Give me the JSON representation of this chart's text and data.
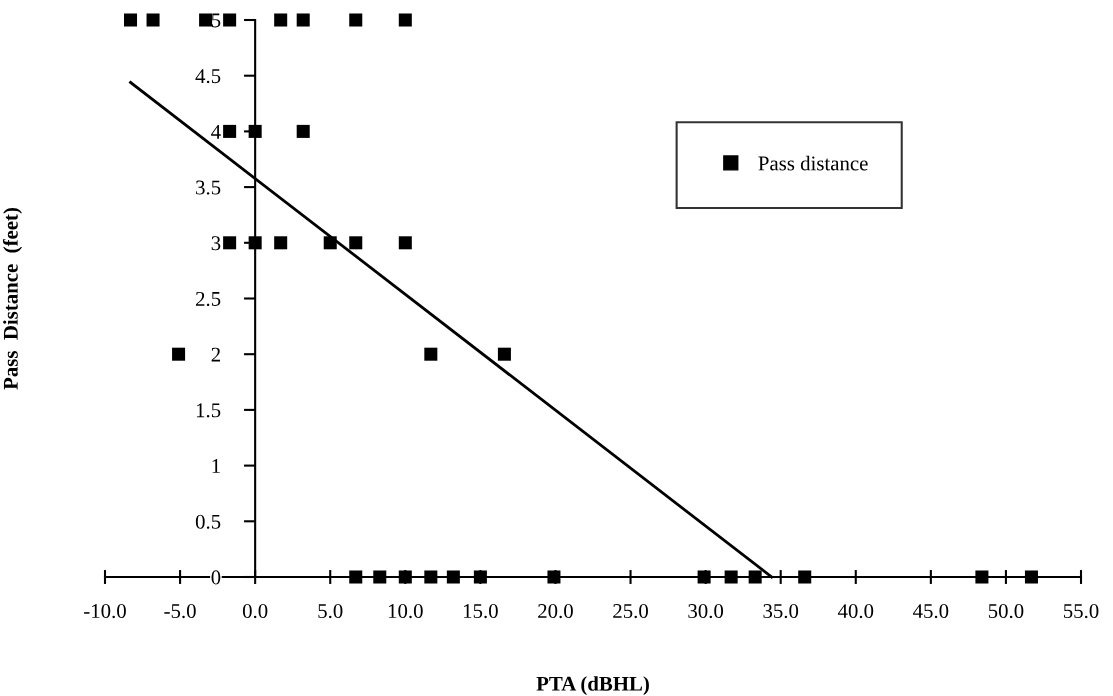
{
  "chart_data": {
    "type": "scatter",
    "xlabel": "PTA (dBHL)",
    "ylabel": "Pass  Distance  (feet)",
    "series": [
      {
        "name": "Pass distance",
        "type": "scatter",
        "color": "#000000",
        "marker": "square",
        "x": [
          -8.3,
          -6.8,
          -3.3,
          -1.7,
          1.7,
          3.2,
          6.7,
          10.0,
          -1.7,
          0,
          3.2,
          -1.7,
          0,
          1.7,
          5.0,
          6.7,
          10.0,
          -5.1,
          11.7,
          16.6,
          6.7,
          8.3,
          10.0,
          11.7,
          13.2,
          15.0,
          19.9,
          29.9,
          31.7,
          33.3,
          36.6,
          48.4,
          51.7
        ],
        "values": [
          5,
          5,
          5,
          5,
          5,
          5,
          5,
          5,
          4,
          4,
          4,
          3,
          3,
          3,
          3,
          3,
          3,
          2,
          2,
          2,
          0,
          0,
          0,
          0,
          0,
          0,
          0,
          0,
          0,
          0,
          0,
          0,
          0
        ]
      },
      {
        "type": "line",
        "color": "#000000",
        "marker": "none",
        "line_style": "solid",
        "x": [
          -8.3,
          34.4
        ],
        "values": [
          4.44,
          0
        ]
      }
    ],
    "xlim": [
      -10,
      55
    ],
    "xticks": [
      {
        "value": -10,
        "label": "-10.0"
      },
      {
        "value": -5,
        "label": "-5.0"
      },
      {
        "value": 0,
        "label": "0.0"
      },
      {
        "value": 5,
        "label": "5.0"
      },
      {
        "value": 10,
        "label": "10.0"
      },
      {
        "value": 15,
        "label": "15.0"
      },
      {
        "value": 20,
        "label": "20.0"
      },
      {
        "value": 25,
        "label": "25.0"
      },
      {
        "value": 30,
        "label": "30.0"
      },
      {
        "value": 35,
        "label": "35.0"
      },
      {
        "value": 40,
        "label": "40.0"
      },
      {
        "value": 45,
        "label": "45.0"
      },
      {
        "value": 50,
        "label": "50.0"
      },
      {
        "value": 55,
        "label": "55.0"
      }
    ],
    "ylim": [
      0,
      5
    ],
    "yticks": [
      0,
      0.5,
      1,
      1.5,
      2,
      2.5,
      3,
      3.5,
      4,
      4.5,
      5
    ],
    "grid": false,
    "legend": "top right"
  }
}
